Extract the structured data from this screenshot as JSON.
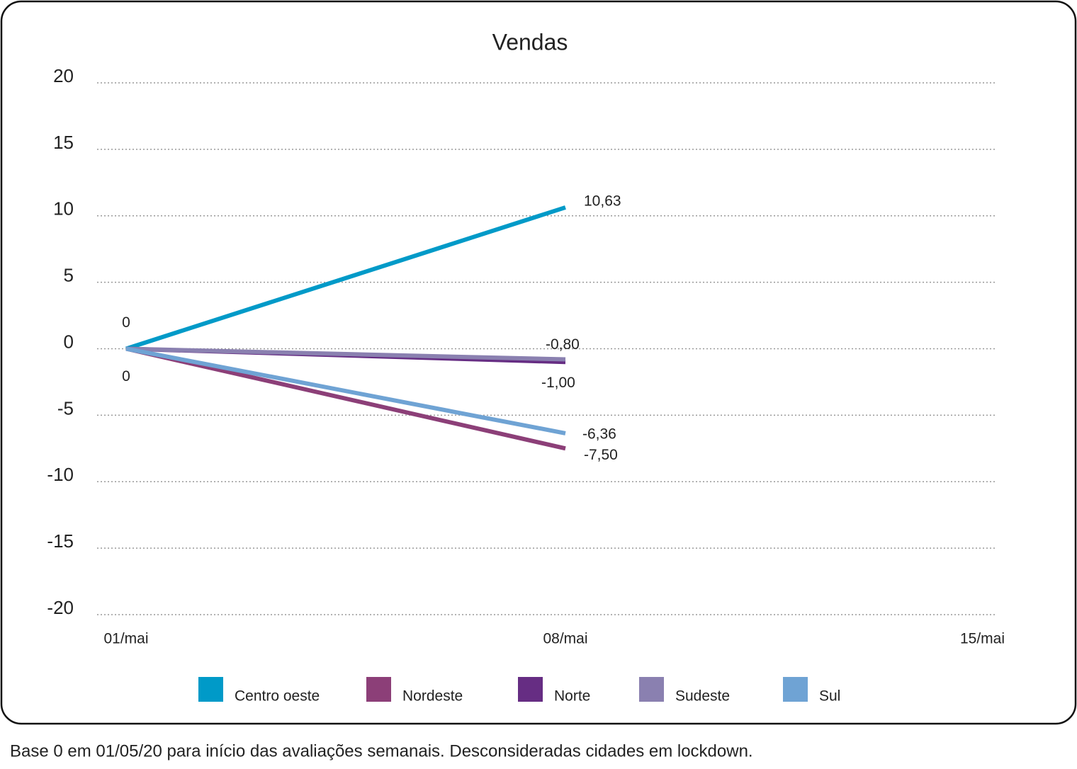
{
  "chart_data": {
    "type": "line",
    "title": "Vendas",
    "categories": [
      "01/mai",
      "08/mai",
      "15/mai"
    ],
    "series": [
      {
        "name": "Centro oeste",
        "color": "#009ac8",
        "values": [
          0,
          10.63,
          null
        ],
        "value_labels": [
          "0",
          "10,63",
          null
        ]
      },
      {
        "name": "Nordeste",
        "color": "#8c3f78",
        "values": [
          0,
          -7.5,
          null
        ],
        "value_labels": [
          null,
          "-7,50",
          null
        ]
      },
      {
        "name": "Norte",
        "color": "#662d83",
        "values": [
          0,
          -1.0,
          null
        ],
        "value_labels": [
          null,
          "-1,00",
          null
        ]
      },
      {
        "name": "Sudeste",
        "color": "#8a80b0",
        "values": [
          0,
          -0.8,
          null
        ],
        "value_labels": [
          null,
          "-0,80",
          null
        ]
      },
      {
        "name": "Sul",
        "color": "#6fa3d4",
        "values": [
          0,
          -6.36,
          null
        ],
        "value_labels": [
          "0",
          "-6,36",
          null
        ]
      }
    ],
    "ylim": [
      -20,
      20
    ],
    "yticks": [
      -20,
      -15,
      -10,
      -5,
      0,
      5,
      10,
      15,
      20
    ],
    "grid": true,
    "legend": "bottom",
    "footnote": "Base 0 em 01/05/20 para início das avaliações semanais. Desconsideradas cidades em lockdown."
  }
}
